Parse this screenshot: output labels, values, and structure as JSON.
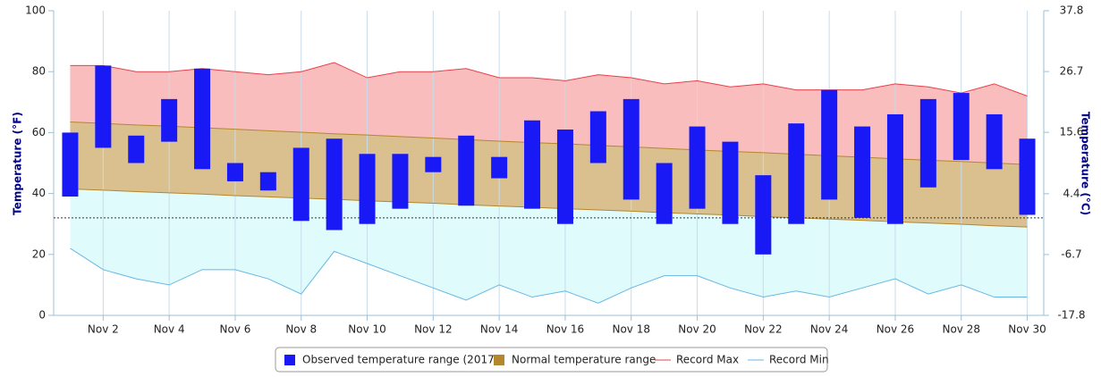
{
  "chart_data": {
    "type": "range",
    "y_label": "Temperature (°F)",
    "y2_label": "Temperature (°C)",
    "categories": [
      null,
      "Nov 2",
      null,
      "Nov 4",
      null,
      "Nov 6",
      null,
      "Nov 8",
      null,
      "Nov 10",
      null,
      "Nov 12",
      null,
      "Nov 14",
      null,
      "Nov 16",
      null,
      "Nov 18",
      null,
      "Nov 20",
      null,
      "Nov 22",
      null,
      "Nov 24",
      null,
      "Nov 26",
      null,
      "Nov 28",
      null,
      "Nov 30"
    ],
    "ylim": [
      0,
      100
    ],
    "yticks": [
      0,
      20,
      40,
      60,
      80,
      100
    ],
    "y2lim": [
      -17.8,
      37.8
    ],
    "y2ticks": [
      -17.8,
      -6.7,
      4.4,
      15.6,
      26.7,
      37.8
    ],
    "grid": "x",
    "plot_lines": [
      32
    ],
    "legend": "bottom",
    "series": [
      {
        "name": "Observed temperature range (2017)",
        "color": "#1919f5",
        "low": [
          39,
          55,
          50,
          57,
          48,
          44,
          41,
          31,
          28,
          30,
          35,
          47,
          36,
          45,
          35,
          30,
          50,
          38,
          30,
          35,
          30,
          20,
          30,
          38,
          32,
          30,
          42,
          51,
          48,
          33
        ],
        "high": [
          60,
          82,
          59,
          71,
          81,
          50,
          47,
          55,
          58,
          53,
          53,
          52,
          59,
          52,
          64,
          61,
          67,
          71,
          50,
          62,
          57,
          46,
          63,
          74,
          62,
          66,
          71,
          73,
          66,
          58
        ]
      },
      {
        "name": "Normal temperature range",
        "color": "#b5872c",
        "fill": "#d9c08e",
        "low": [
          41.5,
          41.1,
          40.6,
          40.2,
          39.8,
          39.3,
          38.9,
          38.5,
          38.1,
          37.6,
          37.2,
          36.8,
          36.3,
          35.9,
          35.5,
          35,
          34.6,
          34.2,
          33.7,
          33.3,
          32.9,
          32.4,
          32,
          31.6,
          31.2,
          30.7,
          30.3,
          29.9,
          29.4,
          29
        ],
        "high": [
          63.5,
          63,
          62.5,
          62.1,
          61.6,
          61.1,
          60.6,
          60.1,
          59.6,
          59.2,
          58.7,
          58.2,
          57.7,
          57.2,
          56.7,
          56.3,
          55.8,
          55.3,
          54.8,
          54.3,
          53.8,
          53.4,
          52.9,
          52.4,
          51.9,
          51.4,
          50.9,
          50.5,
          50,
          49.5
        ]
      },
      {
        "name": "Record Max",
        "color": "#e8404a",
        "fill": "#f9bdbd",
        "values": [
          82,
          82,
          80,
          80,
          81,
          80,
          79,
          80,
          83,
          78,
          80,
          80,
          81,
          78,
          78,
          77,
          79,
          78,
          76,
          77,
          75,
          76,
          74,
          74,
          74,
          76,
          75,
          73,
          76,
          72
        ]
      },
      {
        "name": "Record Min",
        "color": "#67b7e6",
        "fill": "#e0fbfb",
        "values": [
          22,
          15,
          12,
          10,
          15,
          15,
          12,
          7,
          21,
          17,
          13,
          9,
          5,
          10,
          6,
          8,
          4,
          9,
          13,
          13,
          9,
          6,
          8,
          6,
          9,
          12,
          7,
          10,
          6,
          6
        ]
      }
    ]
  }
}
